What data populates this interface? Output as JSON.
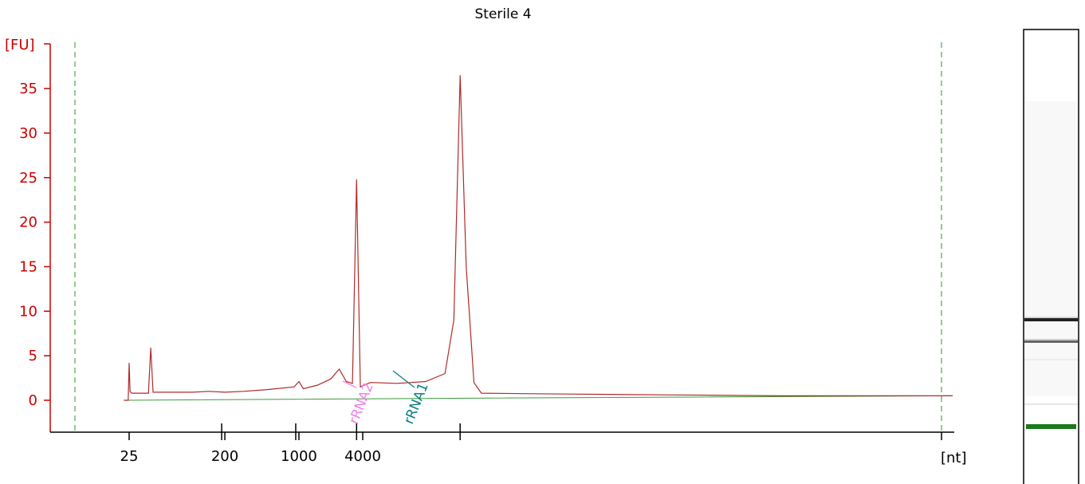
{
  "colors": {
    "axis_y": "#cc0000",
    "axis_x": "#000000",
    "trace": "#b02a2a",
    "baseline": "#3a9a3a",
    "marker_dashed": "#2f8f2f",
    "label_rrna2": "#ee82ee",
    "label_rrna1": "#0d7f7f",
    "lane_band_dark": "#222222",
    "lane_band_mid": "#666666",
    "lane_marker": "#1a7a1a"
  },
  "chart_data": {
    "type": "line",
    "title": "Sterile 4",
    "ylabel": "[FU]",
    "xlabel": "[nt]",
    "ylim": [
      -3.5,
      40
    ],
    "yticks": [
      0,
      5,
      10,
      15,
      20,
      25,
      30,
      35
    ],
    "xticks": [
      "25",
      "200",
      "1000",
      "4000"
    ],
    "annotations": [
      "rRNA2",
      "rRNA1"
    ],
    "series": [
      {
        "points": [
          [
            22.3,
            0
          ],
          [
            24.5,
            0
          ],
          [
            25,
            4.2
          ],
          [
            25.5,
            1.0
          ],
          [
            26.5,
            0.8
          ],
          [
            38,
            0.8
          ],
          [
            40,
            5.9
          ],
          [
            42,
            0.9
          ],
          [
            100,
            0.9
          ],
          [
            140,
            1.0
          ],
          [
            200,
            0.9
          ],
          [
            300,
            1.0
          ],
          [
            500,
            1.2
          ],
          [
            900,
            1.5
          ],
          [
            1000,
            2.1
          ],
          [
            1100,
            1.3
          ],
          [
            1500,
            1.7
          ],
          [
            2000,
            2.4
          ],
          [
            2400,
            3.5
          ],
          [
            2800,
            2.1
          ],
          [
            3200,
            1.9
          ],
          [
            3500,
            24.8
          ],
          [
            3800,
            1.5
          ],
          [
            4200,
            2.0
          ],
          [
            5000,
            1.9
          ],
          [
            6000,
            2.1
          ],
          [
            6800,
            3.0
          ],
          [
            7200,
            9.0
          ],
          [
            7500,
            36.5
          ],
          [
            7800,
            15.0
          ],
          [
            8200,
            2.0
          ],
          [
            8600,
            0.8
          ],
          [
            15000,
            0.7
          ],
          [
            30000,
            0.6
          ],
          [
            60000,
            0.5
          ],
          [
            120000,
            0.5
          ],
          [
            180000,
            0.5
          ]
        ]
      },
      {
        "points": [
          [
            22.3,
            0
          ],
          [
            9000,
            0.25
          ],
          [
            180000,
            0.5
          ]
        ]
      }
    ]
  },
  "lane": {
    "bands": [
      {
        "position": 0.63,
        "intensity": 1.0
      },
      {
        "position": 0.68,
        "intensity": 0.6
      },
      {
        "position": 0.6,
        "intensity": 0.15
      }
    ],
    "marker_position": 0.9
  }
}
